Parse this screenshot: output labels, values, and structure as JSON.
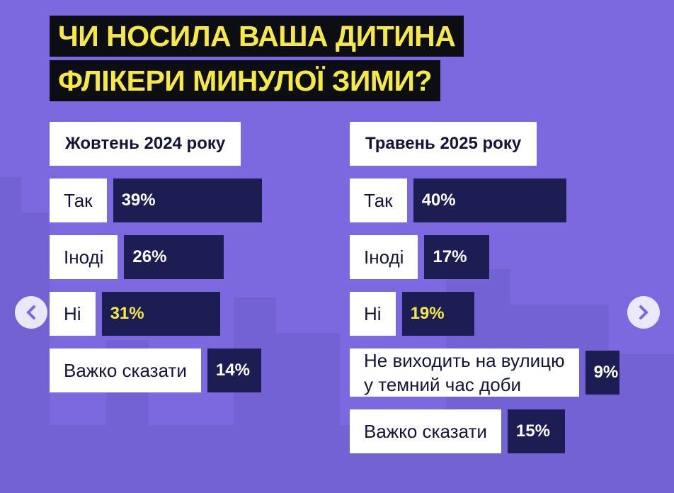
{
  "title": "ЧИ НОСИЛА ВАША ДИТИНА\nФЛІКЕРИ МИНУЛОЇ ЗИМИ?",
  "chart_data": [
    {
      "type": "bar",
      "title": "Жовтень 2024 року",
      "categories": [
        "Так",
        "Іноді",
        "Ні",
        "Важко сказати"
      ],
      "values": [
        39,
        26,
        31,
        14
      ],
      "value_labels": [
        "39%",
        "26%",
        "31%",
        "14%"
      ],
      "color": "#1c1d52",
      "value_label_colors": [
        "#ffffff",
        "#ffffff",
        "#f5e94a",
        "#ffffff"
      ]
    },
    {
      "type": "bar",
      "title": "Травень 2025 року",
      "categories": [
        "Так",
        "Іноді",
        "Ні",
        "Не виходить на вулицю\nу темний час доби",
        "Важко сказати"
      ],
      "values": [
        40,
        17,
        19,
        9,
        15
      ],
      "value_labels": [
        "40%",
        "17%",
        "19%",
        "9%",
        "15%"
      ],
      "color": "#1c1d52",
      "value_label_colors": [
        "#ffffff",
        "#ffffff",
        "#f5e94a",
        "#ffffff",
        "#ffffff"
      ]
    }
  ]
}
